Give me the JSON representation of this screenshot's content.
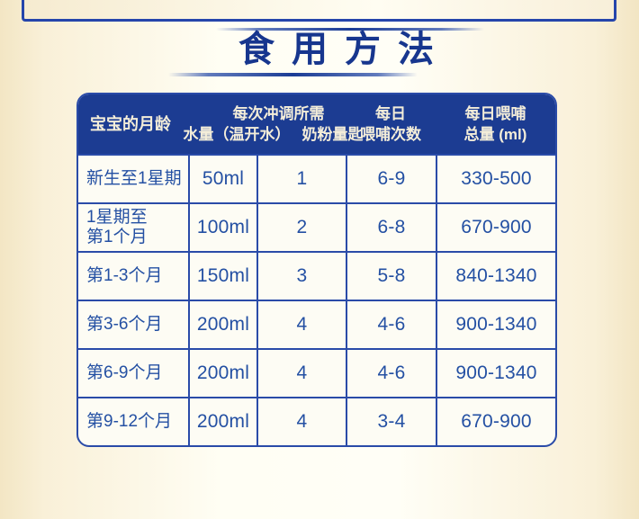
{
  "title": "食用方法",
  "colors": {
    "header_navy": "#1c3c92",
    "table_border_blue": "#2a4ba8",
    "cell_text_blue": "#2450a3",
    "header_text_cream": "#f3edd9",
    "title_blue": "#17368e",
    "background_cream_edge": "#f3e6c4",
    "background_center": "#fffef4",
    "remnant_card_gray": "#b1b1af"
  },
  "table": {
    "header": {
      "age": "宝宝的月龄",
      "per_feed_group": "每次冲调所需",
      "water": "水量（温开水）",
      "powder": "奶粉量匙",
      "daily_line1": "每日",
      "daily_line2": "喂哺次数",
      "total_line1": "每日喂哺",
      "total_line2": "总量 (ml)"
    },
    "rows": [
      {
        "age": "新生至1星期",
        "water": "50ml",
        "scoops": "1",
        "times": "6-9",
        "total": "330-500"
      },
      {
        "age": "1星期至\n第1个月",
        "water": "100ml",
        "scoops": "2",
        "times": "6-8",
        "total": "670-900"
      },
      {
        "age": "第1-3个月",
        "water": "150ml",
        "scoops": "3",
        "times": "5-8",
        "total": "840-1340"
      },
      {
        "age": "第3-6个月",
        "water": "200ml",
        "scoops": "4",
        "times": "4-6",
        "total": "900-1340"
      },
      {
        "age": "第6-9个月",
        "water": "200ml",
        "scoops": "4",
        "times": "4-6",
        "total": "900-1340"
      },
      {
        "age": "第9-12个月",
        "water": "200ml",
        "scoops": "4",
        "times": "3-4",
        "total": "670-900"
      }
    ]
  }
}
